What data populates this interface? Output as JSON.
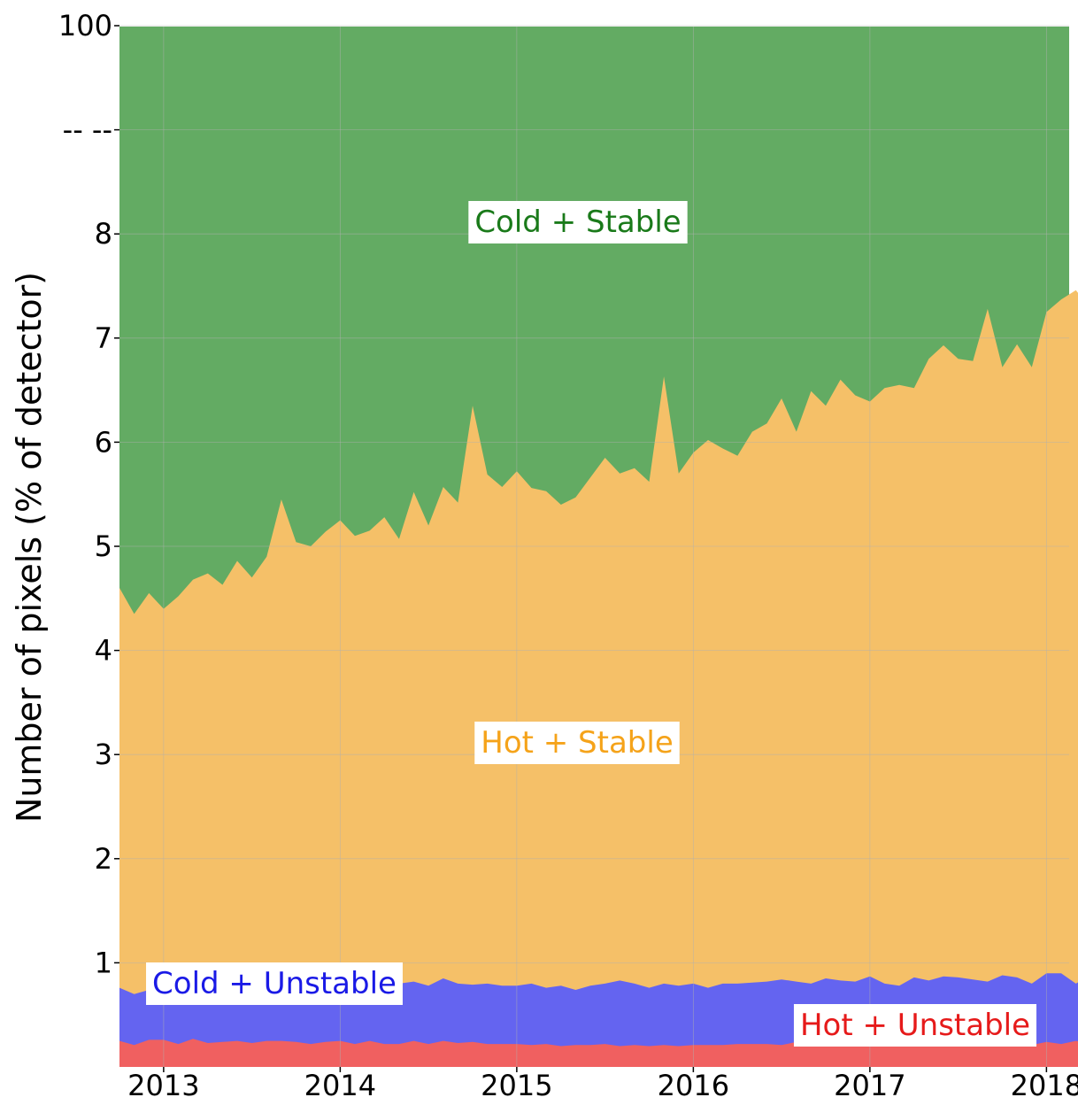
{
  "chart_data": {
    "type": "area",
    "stacked": true,
    "title": "",
    "xlabel": "",
    "ylabel": "Number of pixels (% of detector)",
    "x_ticks": [
      "2013",
      "2014",
      "2015",
      "2016",
      "2017",
      "2018"
    ],
    "y_ticks": [
      "1",
      "2",
      "3",
      "4",
      "5",
      "6",
      "7",
      "8",
      "-- --",
      "100"
    ],
    "y_scale": "piecewise linear 0–8, broken above 8, top of axis = 100",
    "ylim_display": [
      0,
      100
    ],
    "xlim": [
      "2012-10",
      "2018-04"
    ],
    "grid": true,
    "legend": "none (inline labels)",
    "x_dates": [
      "2012-10",
      "2012-11",
      "2012-12",
      "2013-01",
      "2013-02",
      "2013-03",
      "2013-04",
      "2013-05",
      "2013-06",
      "2013-07",
      "2013-08",
      "2013-09",
      "2013-10",
      "2013-11",
      "2013-12",
      "2014-01",
      "2014-02",
      "2014-03",
      "2014-04",
      "2014-05",
      "2014-06",
      "2014-07",
      "2014-08",
      "2014-09",
      "2014-10",
      "2014-11",
      "2014-12",
      "2015-01",
      "2015-02",
      "2015-03",
      "2015-04",
      "2015-05",
      "2015-06",
      "2015-07",
      "2015-08",
      "2015-09",
      "2015-10",
      "2015-11",
      "2015-12",
      "2016-01",
      "2016-02",
      "2016-03",
      "2016-04",
      "2016-05",
      "2016-06",
      "2016-07",
      "2016-08",
      "2016-09",
      "2016-10",
      "2016-11",
      "2016-12",
      "2017-01",
      "2017-02",
      "2017-03",
      "2017-04",
      "2017-05",
      "2017-06",
      "2017-07",
      "2017-08",
      "2017-09",
      "2017-10",
      "2017-11",
      "2017-12",
      "2018-01",
      "2018-02",
      "2018-03",
      "2018-04"
    ],
    "series": [
      {
        "name": "Hot + Unstable",
        "color": "#f06060",
        "cumulative_top": [
          0.25,
          0.21,
          0.26,
          0.26,
          0.22,
          0.27,
          0.23,
          0.24,
          0.25,
          0.23,
          0.25,
          0.25,
          0.24,
          0.22,
          0.24,
          0.25,
          0.22,
          0.25,
          0.22,
          0.22,
          0.25,
          0.22,
          0.25,
          0.23,
          0.24,
          0.22,
          0.22,
          0.22,
          0.21,
          0.22,
          0.2,
          0.21,
          0.21,
          0.22,
          0.2,
          0.21,
          0.2,
          0.21,
          0.2,
          0.21,
          0.21,
          0.21,
          0.22,
          0.22,
          0.22,
          0.21,
          0.24,
          0.23,
          0.22,
          0.23,
          0.21,
          0.22,
          0.21,
          0.22,
          0.21,
          0.21,
          0.21,
          0.21,
          0.21,
          0.21,
          0.21,
          0.21,
          0.21,
          0.24,
          0.22,
          0.25,
          0.23
        ]
      },
      {
        "name": "Cold + Unstable",
        "color": "#6464f0",
        "cumulative_top": [
          0.76,
          0.7,
          0.74,
          0.72,
          0.76,
          0.8,
          0.76,
          0.76,
          0.8,
          0.78,
          0.83,
          0.82,
          0.81,
          0.78,
          0.8,
          0.8,
          0.79,
          0.84,
          0.77,
          0.8,
          0.82,
          0.78,
          0.85,
          0.8,
          0.79,
          0.8,
          0.78,
          0.78,
          0.8,
          0.76,
          0.78,
          0.74,
          0.78,
          0.8,
          0.83,
          0.8,
          0.76,
          0.8,
          0.78,
          0.8,
          0.76,
          0.8,
          0.8,
          0.81,
          0.82,
          0.84,
          0.82,
          0.8,
          0.85,
          0.83,
          0.82,
          0.87,
          0.8,
          0.78,
          0.86,
          0.83,
          0.87,
          0.86,
          0.84,
          0.82,
          0.88,
          0.86,
          0.8,
          0.9,
          0.9,
          0.8,
          0.88
        ]
      },
      {
        "name": "Hot + Stable",
        "color": "#f5c068",
        "cumulative_top": [
          4.6,
          4.35,
          4.55,
          4.4,
          4.52,
          4.68,
          4.74,
          4.63,
          4.86,
          4.7,
          4.9,
          5.45,
          5.04,
          5.0,
          5.14,
          5.25,
          5.1,
          5.15,
          5.28,
          5.07,
          5.52,
          5.2,
          5.57,
          5.42,
          6.35,
          5.69,
          5.57,
          5.72,
          5.56,
          5.53,
          5.4,
          5.47,
          5.66,
          5.85,
          5.7,
          5.75,
          5.62,
          6.63,
          5.7,
          5.9,
          6.02,
          5.94,
          5.87,
          6.1,
          6.18,
          6.42,
          6.1,
          6.49,
          6.35,
          6.6,
          6.45,
          6.39,
          6.52,
          6.55,
          6.52,
          6.8,
          6.93,
          6.8,
          6.78,
          7.28,
          6.72,
          6.94,
          6.72,
          7.08,
          7.14,
          6.91,
          7.33
        ]
      },
      {
        "name": "Cold + Stable",
        "color": "#63ab63",
        "cumulative_top_display": 100
      }
    ],
    "extra_top_values": [
      7.25,
      7.37,
      7.46,
      7.28
    ]
  },
  "labels": {
    "cold_stable": "Cold + Stable",
    "hot_stable": "Hot + Stable",
    "cold_unstable": "Cold + Unstable",
    "hot_unstable": "Hot + Unstable"
  },
  "colors": {
    "cold_stable_text": "#1a7a1a",
    "hot_stable_text": "#f5a31a",
    "cold_unstable_text": "#1a1ae6",
    "hot_unstable_text": "#e61a1a"
  }
}
